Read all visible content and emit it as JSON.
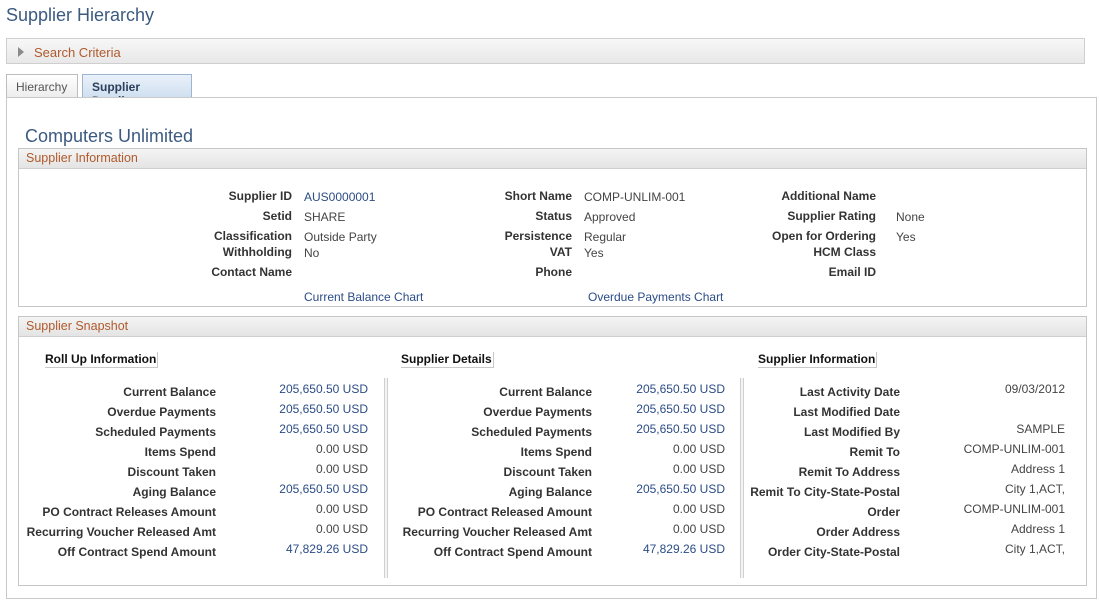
{
  "page_title": "Supplier Hierarchy",
  "search": {
    "label": "Search Criteria"
  },
  "tabs": [
    {
      "label": "Hierarchy"
    },
    {
      "label": "Supplier Details"
    }
  ],
  "supplier_name": "Computers Unlimited",
  "supplier_information": {
    "heading": "Supplier Information",
    "supplier_id_label": "Supplier ID",
    "supplier_id": "AUS0000001",
    "setid_label": "Setid",
    "setid": "SHARE",
    "classification_label": "Classification",
    "classification": "Outside Party",
    "withholding_label": "Withholding",
    "withholding": "No",
    "contact_name_label": "Contact Name",
    "short_name_label": "Short Name",
    "short_name": "COMP-UNLIM-001",
    "status_label": "Status",
    "status": "Approved",
    "persistence_label": "Persistence",
    "persistence": "Regular",
    "vat_label": "VAT",
    "vat": "Yes",
    "phone_label": "Phone",
    "additional_name_label": "Additional Name",
    "supplier_rating_label": "Supplier Rating",
    "supplier_rating": "None",
    "open_for_ordering_label": "Open for Ordering",
    "open_for_ordering": "Yes",
    "hcm_class_label": "HCM Class",
    "email_id_label": "Email ID",
    "current_balance_chart": "Current Balance Chart",
    "overdue_payments_chart": "Overdue Payments Chart"
  },
  "snapshot": {
    "heading": "Supplier Snapshot",
    "rollup": {
      "heading": "Roll Up Information",
      "rows": [
        {
          "label": "Current Balance",
          "value": "205,650.50 USD",
          "link": true
        },
        {
          "label": "Overdue Payments",
          "value": "205,650.50 USD",
          "link": true
        },
        {
          "label": "Scheduled Payments",
          "value": "205,650.50 USD",
          "link": true
        },
        {
          "label": "Items Spend",
          "value": "0.00 USD",
          "link": false
        },
        {
          "label": "Discount Taken",
          "value": "0.00 USD",
          "link": false
        },
        {
          "label": "Aging Balance",
          "value": "205,650.50 USD",
          "link": true
        },
        {
          "label": "PO Contract Releases Amount",
          "value": "0.00 USD",
          "link": false
        },
        {
          "label": "Recurring Voucher Released Amt",
          "value": "0.00 USD",
          "link": false
        },
        {
          "label": "Off Contract Spend Amount",
          "value": "47,829.26 USD",
          "link": true
        }
      ]
    },
    "details": {
      "heading": "Supplier Details",
      "rows": [
        {
          "label": "Current Balance",
          "value": "205,650.50 USD",
          "link": true
        },
        {
          "label": "Overdue Payments",
          "value": "205,650.50 USD",
          "link": true
        },
        {
          "label": "Scheduled Payments",
          "value": "205,650.50 USD",
          "link": true
        },
        {
          "label": "Items Spend",
          "value": "0.00 USD",
          "link": false
        },
        {
          "label": "Discount Taken",
          "value": "0.00 USD",
          "link": false
        },
        {
          "label": "Aging Balance",
          "value": "205,650.50 USD",
          "link": true
        },
        {
          "label": "PO Contract Released Amount",
          "value": "0.00 USD",
          "link": false
        },
        {
          "label": "Recurring Voucher Released Amt",
          "value": "0.00 USD",
          "link": false
        },
        {
          "label": "Off Contract Spend Amount",
          "value": "47,829.26 USD",
          "link": true
        }
      ]
    },
    "info": {
      "heading": "Supplier Information",
      "rows": [
        {
          "label": "Last Activity Date",
          "value": "09/03/2012"
        },
        {
          "label": "Last Modified Date",
          "value": ""
        },
        {
          "label": "Last Modified By",
          "value": "SAMPLE"
        },
        {
          "label": "Remit To",
          "value": "COMP-UNLIM-001"
        },
        {
          "label": "Remit To Address",
          "value": "Address 1"
        },
        {
          "label": "Remit To City-State-Postal",
          "value": "City 1,ACT,"
        },
        {
          "label": "Order",
          "value": "COMP-UNLIM-001"
        },
        {
          "label": "Order Address",
          "value": "Address 1"
        },
        {
          "label": "Order City-State-Postal",
          "value": "City 1,ACT,"
        }
      ]
    }
  },
  "colors": {
    "title": "#3c5a80",
    "link": "#2b4c86",
    "section_head": "#b05a2c"
  }
}
